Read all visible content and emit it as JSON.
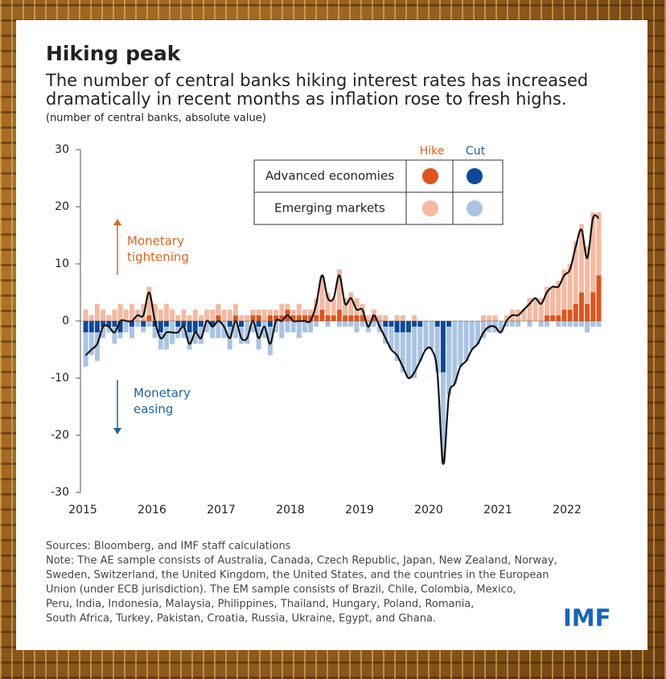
{
  "chart_data": {
    "type": "bar",
    "title": "Hiking peak",
    "subtitle": [
      "The number of central banks hiking interest rates has increased",
      "dramatically in recent months as inflation rose to fresh highs."
    ],
    "unit_note": "(number of central banks, absolute value)",
    "categories": [
      "2015",
      null,
      null,
      null,
      null,
      null,
      null,
      null,
      null,
      null,
      null,
      null,
      "2016",
      null,
      null,
      null,
      null,
      null,
      null,
      null,
      null,
      null,
      null,
      null,
      "2017",
      null,
      null,
      null,
      null,
      null,
      null,
      null,
      null,
      null,
      null,
      null,
      "2018",
      null,
      null,
      null,
      null,
      null,
      null,
      null,
      null,
      null,
      null,
      null,
      "2019",
      null,
      null,
      null,
      null,
      null,
      null,
      null,
      null,
      null,
      null,
      null,
      "2020",
      null,
      null,
      null,
      null,
      null,
      null,
      null,
      null,
      null,
      null,
      null,
      "2021",
      null,
      null,
      null,
      null,
      null,
      null,
      null,
      null,
      null,
      null,
      null,
      "2022",
      null,
      null,
      null,
      null,
      null
    ],
    "ylim": [
      -30,
      30
    ],
    "yticks": [
      -30,
      -20,
      -10,
      0,
      10,
      20,
      30
    ],
    "legend": {
      "columns": [
        "Hike",
        "Cut"
      ],
      "rows": [
        "Advanced economies",
        "Emerging markets"
      ]
    },
    "series": [
      {
        "row": 0,
        "column": 0,
        "color": "#e0541b",
        "values": [
          0,
          0,
          0,
          0,
          0,
          0,
          0,
          0,
          0,
          0,
          0,
          1,
          0,
          0,
          0,
          0,
          0,
          0,
          0,
          0,
          0,
          0,
          0,
          1,
          0,
          0,
          1,
          0,
          0,
          1,
          1,
          0,
          1,
          1,
          1,
          2,
          1,
          1,
          1,
          1,
          1,
          2,
          1,
          1,
          2,
          1,
          1,
          1,
          1,
          0,
          1,
          0,
          0,
          0,
          0,
          0,
          0,
          0,
          0,
          0,
          0,
          0,
          0,
          0,
          0,
          0,
          0,
          0,
          0,
          0,
          0,
          0,
          0,
          0,
          0,
          0,
          0,
          0,
          0,
          0,
          1,
          1,
          1,
          2,
          2,
          3,
          5,
          3,
          5,
          8
        ]
      },
      {
        "row": 1,
        "column": 0,
        "color": "#f5b9a0",
        "values": [
          2,
          1,
          3,
          2,
          1,
          2,
          3,
          2,
          3,
          2,
          3,
          5,
          3,
          2,
          3,
          2,
          1,
          2,
          1,
          2,
          1,
          2,
          2,
          2,
          2,
          2,
          2,
          1,
          1,
          1,
          1,
          2,
          1,
          1,
          2,
          1,
          1,
          2,
          1,
          1,
          3,
          6,
          4,
          3,
          7,
          3,
          4,
          3,
          2,
          1,
          1,
          1,
          1,
          0,
          1,
          1,
          0,
          1,
          0,
          0,
          0,
          0,
          0,
          0,
          0,
          0,
          0,
          0,
          0,
          1,
          1,
          1,
          0,
          1,
          2,
          2,
          2,
          4,
          4,
          4,
          5,
          5,
          6,
          7,
          8,
          11,
          12,
          10,
          14,
          11
        ]
      },
      {
        "row": 0,
        "column": 1,
        "color": "#0b4a9a",
        "values": [
          -2,
          -2,
          -2,
          -1,
          -1,
          -1,
          -2,
          0,
          -1,
          0,
          -1,
          0,
          -1,
          -2,
          -1,
          0,
          -1,
          -1,
          -2,
          -2,
          -1,
          0,
          -1,
          0,
          0,
          -1,
          0,
          -1,
          0,
          0,
          -1,
          0,
          -1,
          0,
          0,
          0,
          0,
          0,
          0,
          0,
          0,
          0,
          0,
          0,
          0,
          0,
          0,
          0,
          0,
          0,
          0,
          0,
          -1,
          -1,
          -2,
          -2,
          -2,
          -1,
          -1,
          0,
          0,
          -1,
          -9,
          -1,
          0,
          0,
          0,
          0,
          0,
          0,
          0,
          0,
          0,
          0,
          0,
          0,
          0,
          0,
          0,
          0,
          0,
          0,
          0,
          0,
          0,
          0,
          0,
          0,
          0,
          0
        ]
      },
      {
        "row": 1,
        "column": 1,
        "color": "#a9c4e3",
        "values": [
          -6,
          -4,
          -5,
          -2,
          -1,
          -3,
          -1,
          -2,
          -2,
          -1,
          -1,
          -1,
          -2,
          -3,
          -4,
          -4,
          -2,
          -2,
          -3,
          -2,
          -3,
          -2,
          -2,
          -3,
          -3,
          -4,
          -3,
          -3,
          -4,
          -2,
          -4,
          -3,
          -5,
          -2,
          -3,
          -2,
          -2,
          -3,
          -2,
          -2,
          -1,
          0,
          -1,
          0,
          -1,
          -1,
          -1,
          -2,
          -1,
          -2,
          -1,
          -2,
          -3,
          -4,
          -5,
          -7,
          -8,
          -9,
          -6,
          -5,
          -5,
          -8,
          -16,
          -12,
          -11,
          -8,
          -7,
          -5,
          -4,
          -3,
          -2,
          -2,
          -2,
          -1,
          -1,
          -1,
          0,
          -1,
          0,
          -1,
          -1,
          0,
          -1,
          -1,
          -1,
          -1,
          -1,
          -2,
          -1,
          -1
        ]
      }
    ],
    "net": {
      "type": "line",
      "color": "#111111",
      "values": [
        -6,
        -5,
        -4,
        -1,
        -1,
        -2,
        0,
        0,
        0,
        1,
        1,
        5,
        0,
        -3,
        -2,
        -2,
        -2,
        -1,
        -4,
        -2,
        -3,
        0,
        -1,
        0,
        -1,
        -3,
        0,
        -3,
        -3,
        0,
        -3,
        -1,
        -4,
        0,
        0,
        1,
        0,
        0,
        0,
        0,
        3,
        8,
        4,
        4,
        8,
        3,
        4,
        2,
        2,
        -1,
        1,
        -1,
        -3,
        -5,
        -6,
        -8,
        -10,
        -9,
        -7,
        -5,
        -5,
        -9,
        -25,
        -13,
        -11,
        -8,
        -7,
        -5,
        -4,
        -2,
        -1,
        -1,
        -2,
        0,
        1,
        1,
        2,
        3,
        4,
        3,
        5,
        6,
        6,
        8,
        9,
        13,
        16,
        11,
        18,
        18
      ]
    },
    "annotations": [
      {
        "lines": [
          "Monetary",
          "tightening"
        ],
        "color": "#e0621d",
        "direction": "up"
      },
      {
        "lines": [
          "Monetary",
          "easing"
        ],
        "color": "#1f5fa8",
        "direction": "down"
      }
    ],
    "sources": "Sources: Bloomberg, and IMF staff calculations",
    "notes": [
      "Note: The AE sample consists of Australia, Canada, Czech Republic, Japan, New Zealand, Norway,",
      "Sweden, Switzerland, the United Kingdom, the United States, and the countries in the European",
      "Union (under ECB jurisdiction). The EM sample consists of Brazil, Chile, Colombia, Mexico,",
      "Peru, India, Indonesia, Malaysia, Philippines, Thailand, Hungary, Poland, Romania,",
      "South Africa, Turkey, Pakistan, Croatia, Russia, Ukraine, Egypt, and Ghana."
    ],
    "logo": "IMF"
  }
}
